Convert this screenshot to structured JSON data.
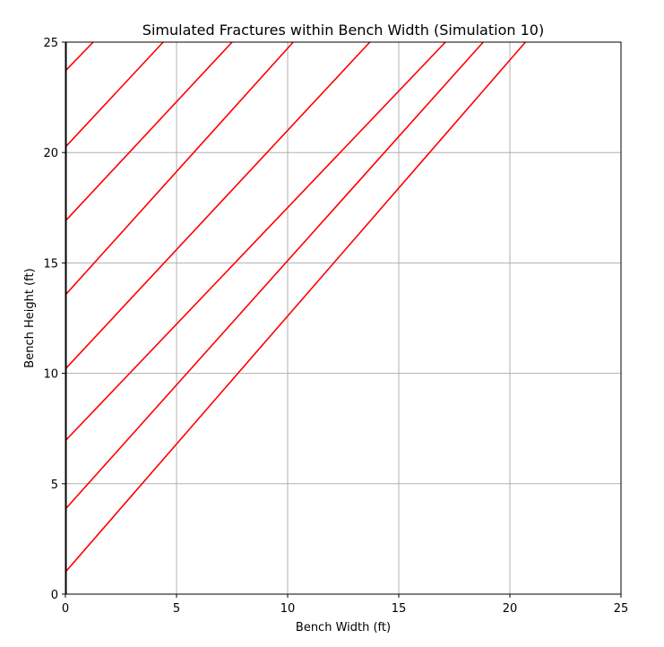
{
  "chart_data": {
    "type": "line",
    "title": "Simulated Fractures within Bench Width (Simulation 10)",
    "xlabel": "Bench Width (ft)",
    "ylabel": "Bench Height (ft)",
    "xlim": [
      0,
      25
    ],
    "ylim": [
      0,
      25
    ],
    "xticks": [
      0,
      5,
      10,
      15,
      20,
      25
    ],
    "yticks": [
      0,
      5,
      10,
      15,
      20,
      25
    ],
    "grid": true,
    "colors": {
      "fracture": "#ff0000",
      "grid": "#b0b0b0",
      "axes": "#000000"
    },
    "series": [
      {
        "x": [
          0,
          20.7
        ],
        "y": [
          1.0,
          25
        ]
      },
      {
        "x": [
          0,
          18.8
        ],
        "y": [
          3.85,
          25
        ]
      },
      {
        "x": [
          0,
          17.1
        ],
        "y": [
          6.95,
          25
        ]
      },
      {
        "x": [
          0,
          13.7
        ],
        "y": [
          10.2,
          25
        ]
      },
      {
        "x": [
          0,
          10.25
        ],
        "y": [
          13.55,
          25
        ]
      },
      {
        "x": [
          0,
          7.5
        ],
        "y": [
          16.9,
          25
        ]
      },
      {
        "x": [
          0,
          4.4
        ],
        "y": [
          20.25,
          25
        ]
      },
      {
        "x": [
          0,
          1.25
        ],
        "y": [
          23.7,
          25
        ]
      }
    ]
  }
}
